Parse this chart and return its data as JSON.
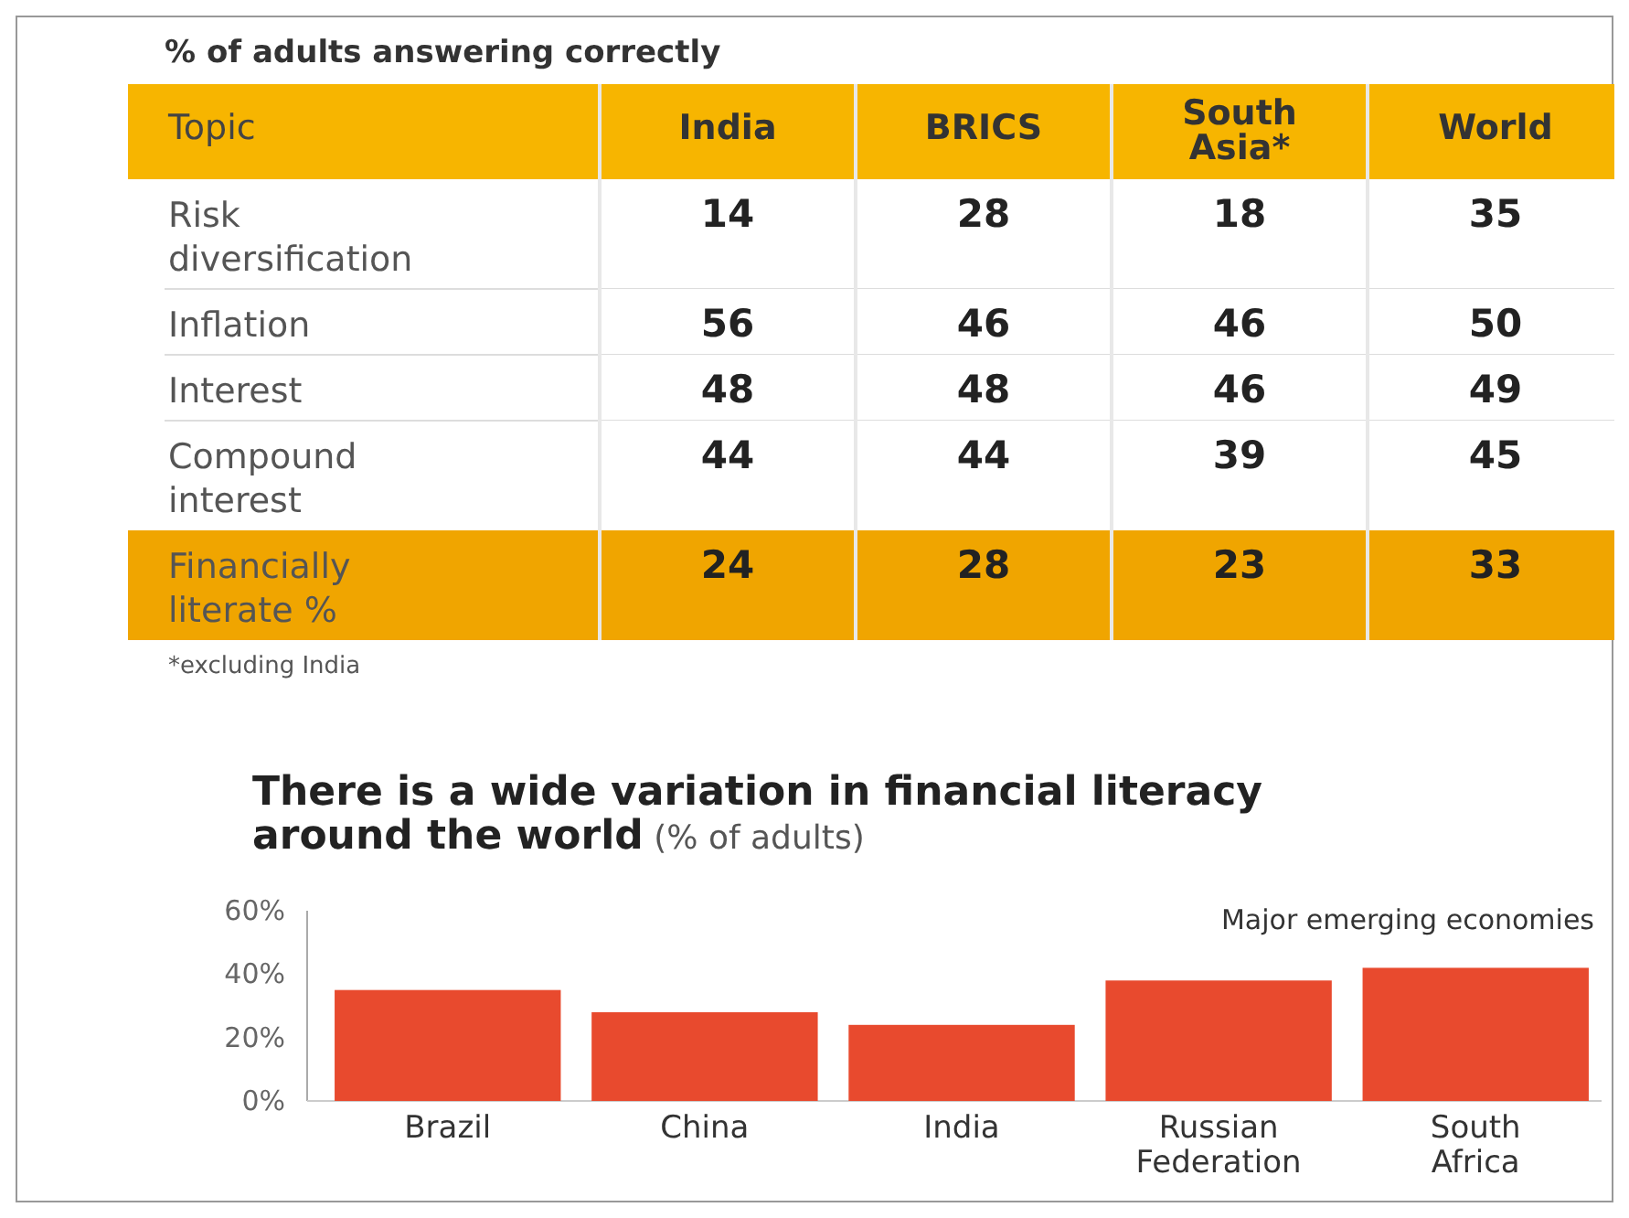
{
  "chart_data": [
    {
      "type": "heatmap",
      "title": "% of adults answering correctly",
      "ylabel": "Topic",
      "categories": [
        "India",
        "BRICS",
        "South Asia*",
        "World"
      ],
      "y_categories": [
        "Risk diversification",
        "Inflation",
        "Interest",
        "Compound interest",
        "Financially literate %"
      ],
      "cells": [
        [
          14,
          28,
          18,
          35
        ],
        [
          56,
          46,
          46,
          50
        ],
        [
          48,
          48,
          46,
          49
        ],
        [
          44,
          44,
          39,
          45
        ],
        [
          24,
          28,
          23,
          33
        ]
      ],
      "data_labels": true,
      "annotations": [
        "*excluding India"
      ]
    },
    {
      "type": "bar",
      "title": "There is a wide variation in financial literacy around the world",
      "subtitle": "(% of adults)",
      "categories": [
        "Brazil",
        "China",
        "India",
        "Russian Federation",
        "South Africa"
      ],
      "values": [
        35,
        28,
        24,
        38,
        42
      ],
      "color": "#e84a2e",
      "ylim": [
        0,
        60
      ],
      "yticks": [
        {
          "value": 0,
          "label": "0%"
        },
        {
          "value": 20,
          "label": "20%"
        },
        {
          "value": 40,
          "label": "40%"
        },
        {
          "value": 60,
          "label": "60%"
        }
      ],
      "grid": false,
      "annotations": [
        "Major emerging economies"
      ]
    }
  ]
}
